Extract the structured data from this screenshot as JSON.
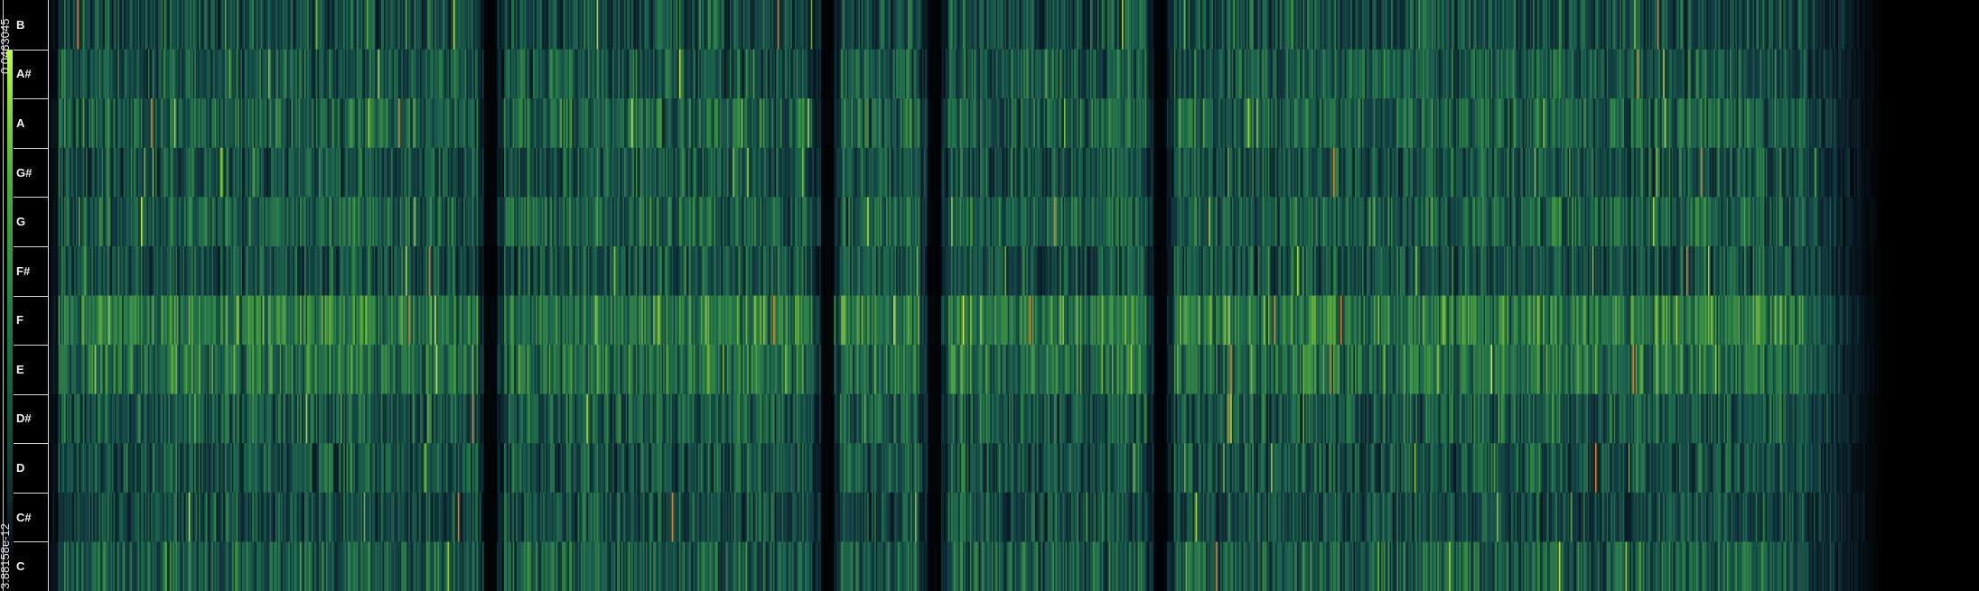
{
  "chart_data": {
    "type": "heatmap",
    "title": "",
    "xlabel": "",
    "ylabel": "",
    "y_categories_top_to_bottom": [
      "B",
      "A#",
      "A",
      "G#",
      "G",
      "F#",
      "F",
      "E",
      "D#",
      "D",
      "C#",
      "C"
    ],
    "colorbar": {
      "max_label": "0.0463045",
      "min_label": "3.88158e-12",
      "value_range": [
        3.88158e-12,
        0.0463045
      ]
    },
    "num_frames": 1300,
    "data_extent_fraction": 0.975,
    "pitch_class_mean_levels": {
      "B": 0.38,
      "A#": 0.42,
      "A": 0.46,
      "G#": 0.4,
      "G": 0.45,
      "F#": 0.4,
      "F": 0.56,
      "E": 0.52,
      "D#": 0.42,
      "D": 0.4,
      "C#": 0.38,
      "C": 0.44
    },
    "quiet_sections_fraction_of_time": [
      0.234,
      0.413,
      0.47,
      0.59
    ],
    "colormap": [
      "#000000",
      "#0a1a24",
      "#134043",
      "#1f6b4e",
      "#3f9440",
      "#8ec43a",
      "#d2e33a",
      "#e07a2a"
    ]
  }
}
